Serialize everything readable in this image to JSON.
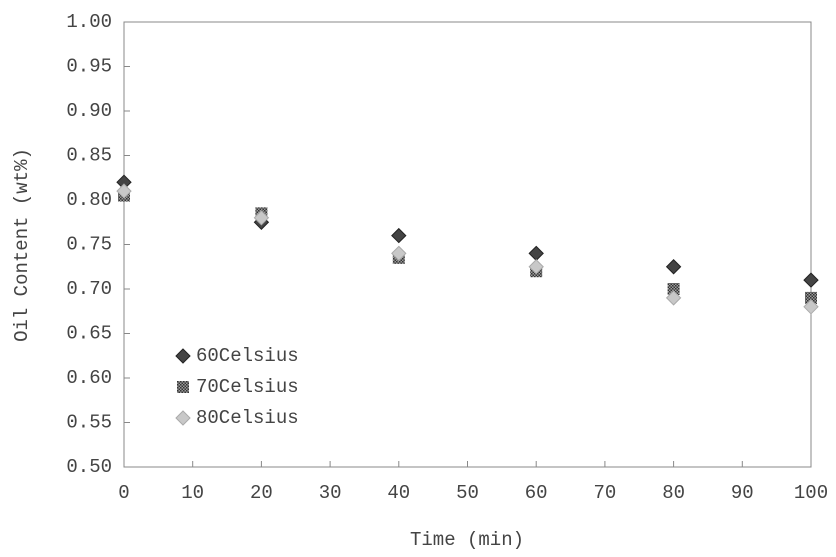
{
  "chart_data": {
    "type": "scatter",
    "x_label": "Time (min)",
    "y_label": "Oil Content (wt%)",
    "xlim": [
      0,
      100
    ],
    "xticks": [
      0,
      10,
      20,
      30,
      40,
      50,
      60,
      70,
      80,
      90,
      100
    ],
    "ylim": [
      0.5,
      1.0
    ],
    "yticks": [
      {
        "value": 0.5,
        "label": "0.50"
      },
      {
        "value": 0.55,
        "label": "0.55"
      },
      {
        "value": 0.6,
        "label": "0.60"
      },
      {
        "value": 0.65,
        "label": "0.65"
      },
      {
        "value": 0.7,
        "label": "0.70"
      },
      {
        "value": 0.75,
        "label": "0.75"
      },
      {
        "value": 0.8,
        "label": "0.80"
      },
      {
        "value": 0.85,
        "label": "0.85"
      },
      {
        "value": 0.9,
        "label": "0.90"
      },
      {
        "value": 0.95,
        "label": "0.95"
      },
      {
        "value": 1.0,
        "label": "1.00"
      }
    ],
    "x": [
      0,
      20,
      40,
      60,
      80,
      100
    ],
    "series": [
      {
        "name": "60Celsius",
        "color": "#444444",
        "values": [
          0.82,
          0.775,
          0.76,
          0.74,
          0.725,
          0.71
        ]
      },
      {
        "name": "70Celsius",
        "color": "#6a6a6a",
        "values": [
          0.805,
          0.785,
          0.735,
          0.72,
          0.7,
          0.69
        ]
      },
      {
        "name": "80Celsius",
        "color": "#c8c8c8",
        "values": [
          0.81,
          0.78,
          0.74,
          0.725,
          0.69,
          0.68
        ]
      }
    ]
  }
}
